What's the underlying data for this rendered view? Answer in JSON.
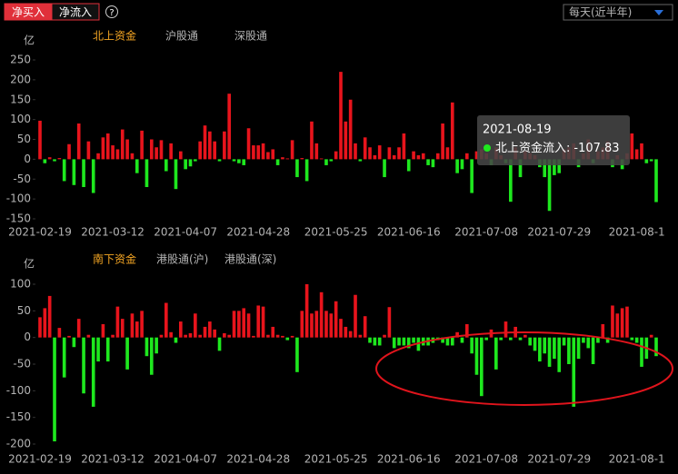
{
  "ui": {
    "buttons": [
      "净买入",
      "净流入"
    ],
    "help": "?",
    "dropdown": "每天(近半年)"
  },
  "chart_data": [
    {
      "type": "bar",
      "unit": "亿",
      "tabs": [
        "北上资金",
        "沪股通",
        "深股通"
      ],
      "active_tab_color": "#f5a623",
      "categories": [
        "2021-02-19",
        null,
        null,
        null,
        null,
        null,
        null,
        null,
        null,
        null,
        null,
        null,
        null,
        null,
        null,
        "2021-03-12",
        null,
        null,
        null,
        null,
        null,
        null,
        null,
        null,
        null,
        null,
        null,
        null,
        null,
        null,
        "2021-04-07",
        null,
        null,
        null,
        null,
        null,
        null,
        null,
        null,
        null,
        null,
        null,
        null,
        null,
        null,
        "2021-04-28",
        null,
        null,
        null,
        null,
        null,
        null,
        null,
        null,
        null,
        null,
        null,
        null,
        null,
        null,
        null,
        "2021-05-25",
        null,
        null,
        null,
        null,
        null,
        null,
        null,
        null,
        null,
        null,
        null,
        null,
        null,
        null,
        "2021-06-16",
        null,
        null,
        null,
        null,
        null,
        null,
        null,
        null,
        null,
        null,
        null,
        null,
        null,
        null,
        null,
        "2021-07-08",
        null,
        null,
        null,
        null,
        null,
        null,
        null,
        null,
        null,
        null,
        null,
        null,
        null,
        null,
        "2021-07-29",
        null,
        null,
        null,
        null,
        null,
        null,
        null,
        null,
        null,
        null,
        null,
        null,
        null,
        null,
        null,
        "2021-08-1",
        null,
        null,
        null,
        null
      ],
      "values": [
        97,
        -10,
        5,
        -5,
        3,
        -55,
        38,
        -65,
        90,
        -70,
        45,
        -85,
        15,
        55,
        65,
        35,
        25,
        75,
        50,
        15,
        -35,
        72,
        -70,
        50,
        30,
        48,
        -30,
        40,
        -75,
        20,
        -25,
        -18,
        -5,
        45,
        85,
        70,
        45,
        -5,
        70,
        165,
        -5,
        -10,
        -15,
        78,
        35,
        35,
        40,
        18,
        25,
        -15,
        5,
        2,
        48,
        -45,
        3,
        -55,
        95,
        40,
        2,
        -15,
        -5,
        20,
        220,
        95,
        150,
        40,
        -5,
        55,
        30,
        10,
        35,
        -45,
        30,
        10,
        30,
        65,
        -30,
        20,
        10,
        15,
        -15,
        -20,
        15,
        90,
        30,
        143,
        -35,
        -25,
        15,
        -85,
        20,
        25,
        15,
        -15,
        30,
        10,
        -10,
        -107,
        30,
        -45,
        20,
        15,
        10,
        -20,
        -45,
        -130,
        -40,
        -35,
        25,
        30,
        40,
        -20,
        15,
        50,
        -10,
        20,
        30,
        45,
        -20,
        10,
        -25,
        15,
        65,
        25,
        40,
        -10,
        -5,
        -107.83
      ],
      "up_color": "#e8141c",
      "down_color": "#1ee81e",
      "ylim": [
        -150,
        250
      ],
      "yticks": [
        250,
        200,
        150,
        100,
        50,
        0,
        -50,
        -100,
        -150
      ],
      "grid": false,
      "tooltip": {
        "date": "2021-08-19",
        "label": "北上资金流入:",
        "index": 127
      }
    },
    {
      "type": "bar",
      "unit": "亿",
      "tabs": [
        "南下资金",
        "港股通(沪)",
        "港股通(深)"
      ],
      "active_tab_color": "#f5a623",
      "categories": [
        "2021-02-19",
        null,
        null,
        null,
        null,
        null,
        null,
        null,
        null,
        null,
        null,
        null,
        null,
        null,
        null,
        "2021-03-12",
        null,
        null,
        null,
        null,
        null,
        null,
        null,
        null,
        null,
        null,
        null,
        null,
        null,
        null,
        "2021-04-07",
        null,
        null,
        null,
        null,
        null,
        null,
        null,
        null,
        null,
        null,
        null,
        null,
        null,
        null,
        "2021-04-28",
        null,
        null,
        null,
        null,
        null,
        null,
        null,
        null,
        null,
        null,
        null,
        null,
        null,
        null,
        null,
        "2021-05-25",
        null,
        null,
        null,
        null,
        null,
        null,
        null,
        null,
        null,
        null,
        null,
        null,
        null,
        null,
        "2021-06-16",
        null,
        null,
        null,
        null,
        null,
        null,
        null,
        null,
        null,
        null,
        null,
        null,
        null,
        null,
        null,
        "2021-07-08",
        null,
        null,
        null,
        null,
        null,
        null,
        null,
        null,
        null,
        null,
        null,
        null,
        null,
        null,
        "2021-07-29",
        null,
        null,
        null,
        null,
        null,
        null,
        null,
        null,
        null,
        null,
        null,
        null,
        null,
        null,
        null,
        "2021-08-1",
        null,
        null,
        null,
        null
      ],
      "values": [
        38,
        55,
        78,
        -195,
        18,
        -75,
        3,
        -18,
        35,
        -105,
        5,
        -130,
        -45,
        25,
        -45,
        5,
        58,
        35,
        -60,
        45,
        30,
        50,
        -35,
        -70,
        -30,
        5,
        65,
        10,
        -10,
        30,
        5,
        8,
        45,
        5,
        20,
        30,
        15,
        -25,
        8,
        5,
        50,
        50,
        55,
        45,
        3,
        60,
        58,
        5,
        20,
        5,
        3,
        -5,
        3,
        -65,
        50,
        100,
        45,
        50,
        85,
        50,
        45,
        68,
        35,
        20,
        12,
        80,
        5,
        40,
        -10,
        -15,
        -15,
        5,
        57,
        -20,
        -15,
        -15,
        -20,
        -10,
        -25,
        -15,
        -15,
        -10,
        -5,
        -10,
        -15,
        -15,
        10,
        -10,
        25,
        -30,
        -70,
        -110,
        -5,
        15,
        -60,
        -5,
        30,
        -5,
        20,
        -5,
        5,
        -15,
        -25,
        -45,
        -30,
        -55,
        -40,
        -65,
        -15,
        -50,
        -130,
        -40,
        -10,
        -20,
        -50,
        -10,
        25,
        -10,
        60,
        45,
        55,
        58,
        -5,
        -10,
        -55,
        -40,
        5,
        -35
      ],
      "up_color": "#e8141c",
      "down_color": "#1ee81e",
      "ylim": [
        -200,
        100
      ],
      "yticks": [
        100,
        50,
        0,
        -50,
        -100,
        -150,
        -200
      ],
      "grid": false
    }
  ]
}
